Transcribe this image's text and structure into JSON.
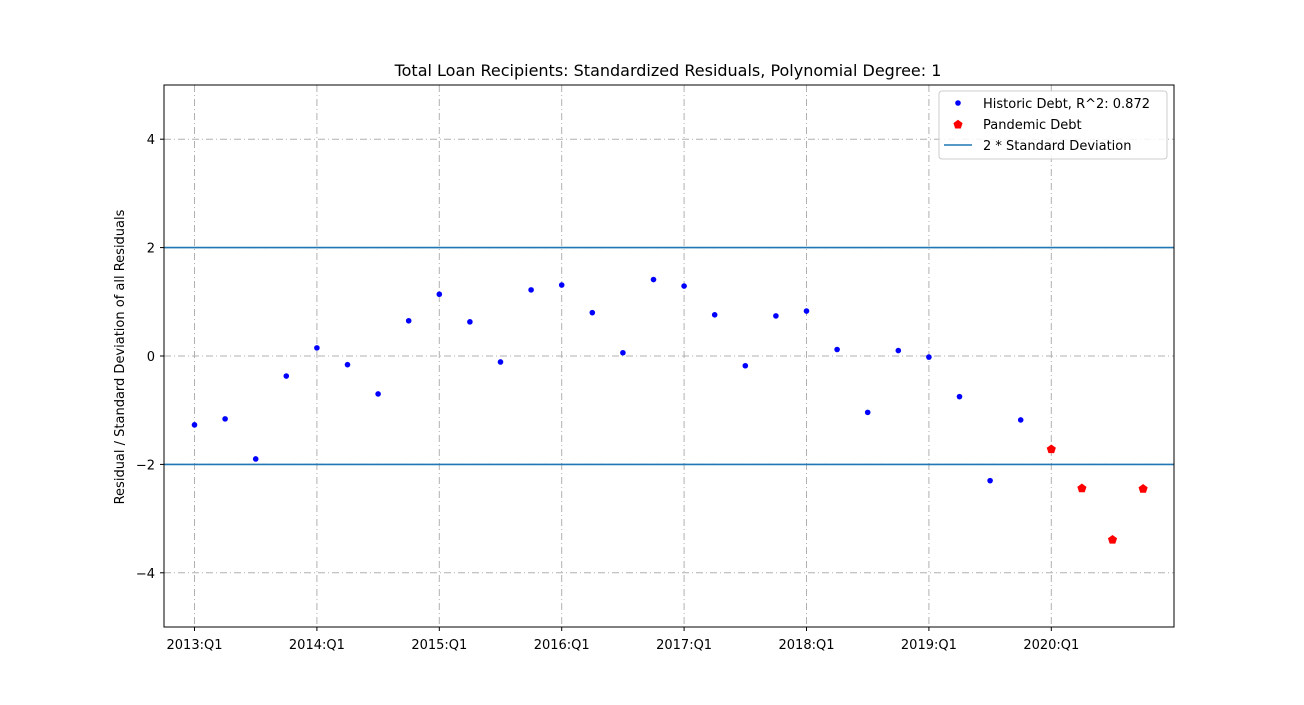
{
  "chart_data": {
    "type": "scatter",
    "title": "Total Loan Recipients: Standardized Residuals, Polynomial Degree: 1",
    "xlabel": "",
    "ylabel": "Residual / Standard Deviation of all Residuals",
    "x_tick_labels": [
      "2013:Q1",
      "2014:Q1",
      "2015:Q1",
      "2016:Q1",
      "2017:Q1",
      "2018:Q1",
      "2019:Q1",
      "2020:Q1"
    ],
    "y_ticks": [
      -4,
      -2,
      0,
      2,
      4
    ],
    "y_tick_labels": [
      "−4",
      "−2",
      "0",
      "2",
      "4"
    ],
    "ylim": [
      -5,
      5
    ],
    "grid": true,
    "legend_position": "top-right",
    "series": [
      {
        "name": "Historic Debt, R^2: 0.872",
        "marker": "dot",
        "color": "#0000ff",
        "x": [
          "2013:Q1",
          "2013:Q2",
          "2013:Q3",
          "2013:Q4",
          "2014:Q1",
          "2014:Q2",
          "2014:Q3",
          "2014:Q4",
          "2015:Q1",
          "2015:Q2",
          "2015:Q3",
          "2015:Q4",
          "2016:Q1",
          "2016:Q2",
          "2016:Q3",
          "2016:Q4",
          "2017:Q1",
          "2017:Q2",
          "2017:Q3",
          "2017:Q4",
          "2018:Q1",
          "2018:Q2",
          "2018:Q3",
          "2018:Q4",
          "2019:Q1",
          "2019:Q2",
          "2019:Q3",
          "2019:Q4"
        ],
        "values": [
          -1.27,
          -1.16,
          -1.9,
          -0.37,
          0.15,
          -0.16,
          -0.7,
          0.65,
          1.14,
          0.63,
          -0.11,
          1.22,
          1.31,
          0.8,
          0.06,
          1.41,
          1.29,
          0.76,
          -0.18,
          0.74,
          0.83,
          0.12,
          -1.04,
          0.1,
          -0.02,
          -0.75,
          -2.3,
          -1.18
        ]
      },
      {
        "name": "Pandemic Debt",
        "marker": "pentagon",
        "color": "#ff0000",
        "x": [
          "2020:Q1",
          "2020:Q2",
          "2020:Q3",
          "2020:Q4"
        ],
        "values": [
          -1.71,
          -2.43,
          -3.38,
          -2.44
        ]
      },
      {
        "name": "2 * Standard Deviation",
        "marker": "line",
        "color": "#1f77b4",
        "hlines": [
          2,
          -2
        ]
      }
    ]
  }
}
